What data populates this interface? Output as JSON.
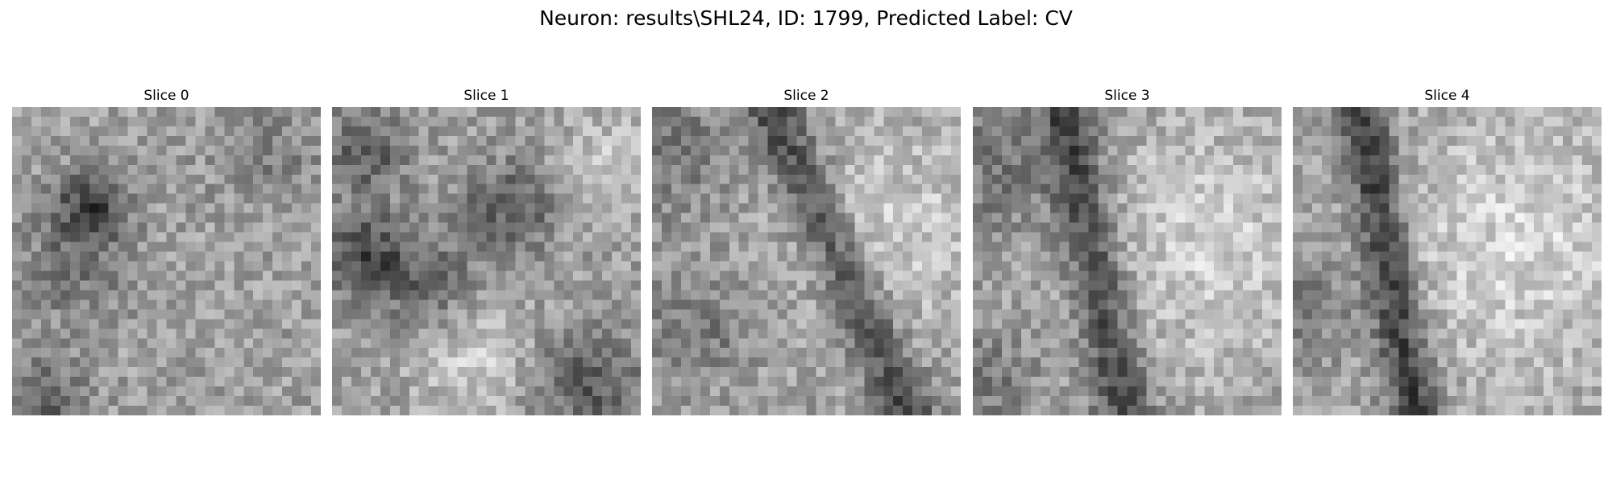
{
  "figure": {
    "title": "Neuron: results\\SHL24, ID: 1799, Predicted Label: CV"
  },
  "colormap": "gray",
  "grid": {
    "rows": 32,
    "cols": 32
  },
  "slices": [
    {
      "title": "Slice 0",
      "dark_pattern": "dark blob left-center, dark bottom-left corner"
    },
    {
      "title": "Slice 1",
      "dark_pattern": "dark ring-like band, lighter lower-center, dark bottom-right"
    },
    {
      "title": "Slice 2",
      "dark_pattern": "dark diagonal band from top-left to bottom-center"
    },
    {
      "title": "Slice 3",
      "dark_pattern": "dark vertical band left of center, light right side"
    },
    {
      "title": "Slice 4",
      "dark_pattern": "dark vertical band left, light right side"
    }
  ]
}
